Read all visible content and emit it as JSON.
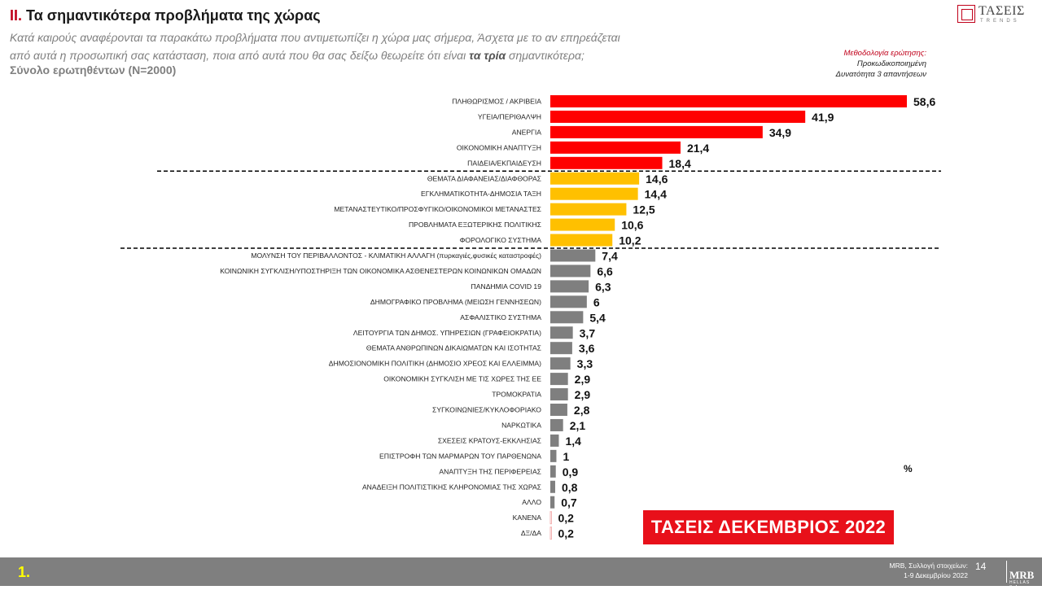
{
  "header": {
    "number": "II.",
    "title": "Τα σημαντικότερα προβλήματα της χώρας",
    "subtitle_line1": "Κατά καιρούς αναφέρονται τα παρακάτω προβλήματα που αντιμετωπίζει η χώρα μας σήμερα, Άσχετα με το αν επηρεάζεται",
    "subtitle_line2_start": "από αυτά η προσωπική σας κατάσταση, ποια από αυτά που θα σας δείξω θεωρείτε ότι είναι ",
    "subtitle_line2_bold": "τα τρία",
    "subtitle_line2_end": " σημαντικότερα;",
    "sample": "Σύνολο ερωτηθέντων (Ν=2000)"
  },
  "logo": {
    "name": "ΤΑΣΕΙΣ",
    "sub": "TRENDS"
  },
  "methodology": {
    "title": "Μεθοδολογία ερώτησης:",
    "line1": "Προκωδικοποιημένη",
    "line2": "Δυνατότητα 3 απαντήσεων"
  },
  "unit_label": "%",
  "stamp": "ΤΑΣΕΙΣ ΔΕΚΕΜΒΡΙΟΣ 2022",
  "footer": {
    "slide_number": "1.",
    "source_line1": "MRB, Συλλογή στοιχείων:",
    "source_line2": "1-9 Δεκεμβρίου 2022",
    "page": "14",
    "mrb": "MRB",
    "mrb_sub": "HELLAS S.A."
  },
  "colors": {
    "top_group": "#ff0000",
    "mid_group": "#ffc000",
    "rest_group": "#7f7f7f",
    "accent": "#c0001a"
  },
  "chart_data": {
    "type": "bar",
    "orientation": "horizontal",
    "categories": [
      "ΠΛΗΘΩΡΙΣΜΟΣ / ΑΚΡΙΒΕΙΑ",
      "ΥΓΕΙΑ/ΠΕΡΙΘΑΛΨΗ",
      "ΑΝΕΡΓΙΑ",
      "ΟΙΚΟΝΟΜΙΚΗ ΑΝΑΠΤΥΞΗ",
      "ΠΑΙΔΕΙΑ/ΕΚΠΑΙΔΕΥΣΗ",
      "ΘΕΜΑΤΑ ΔΙΑΦΑΝΕΙΑΣ/ΔΙΑΦΘΟΡΑΣ",
      "ΕΓΚΛΗΜΑΤΙΚΟΤΗΤΑ-ΔΗΜΟΣΙΑ ΤΑΞΗ",
      "ΜΕΤΑΝΑΣΤΕΥΤΙΚΟ/ΠΡΟΣΦΥΓΙΚΟ/ΟΙΚΟΝΟΜΙΚΟΙ ΜΕΤΑΝΑΣΤΕΣ",
      "ΠΡΟΒΛΗΜΑΤΑ ΕΞΩΤΕΡΙΚΗΣ ΠΟΛΙΤΙΚΗΣ",
      "ΦΟΡΟΛΟΓΙΚΟ ΣΥΣΤΗΜΑ",
      "ΜΟΛΥΝΣΗ ΤΟΥ ΠΕΡΙΒΑΛΛΟΝΤΟΣ - ΚΛΙΜΑΤΙΚΗ ΑΛΛΑΓΗ (πυρκαγιές,φυσικές καταστροφές)",
      "ΚΟΙΝΩΝΙΚΗ ΣΥΓΚΛΙΣΗ/ΥΠΟΣΤΗΡΙΞΗ ΤΩΝ ΟΙΚΟΝΟΜΙΚΑ ΑΣΘΕΝΕΣΤΕΡΩΝ ΚΟΙΝΩΝΙΚΩΝ ΟΜΑΔΩΝ",
      "ΠΑΝΔΗΜΙΑ COVID 19",
      "ΔΗΜΟΓΡΑΦΙΚΟ ΠΡΟΒΛΗΜΑ (ΜΕΙΩΣΗ ΓΕΝΝΗΣΕΩΝ)",
      "ΑΣΦΑΛΙΣΤΙΚΟ ΣΥΣΤΗΜΑ",
      "ΛΕΙΤΟΥΡΓΙΑ ΤΩΝ ΔΗΜΟΣ. ΥΠΗΡΕΣΙΩΝ (ΓΡΑΦΕΙΟΚΡΑΤΙΑ)",
      "ΘΕΜΑΤΑ ΑΝΘΡΩΠΙΝΩΝ ΔΙΚΑΙΩΜΑΤΩΝ ΚΑΙ ΙΣΟΤΗΤΑΣ",
      "ΔΗΜΟΣΙΟΝΟΜΙΚΗ ΠΟΛΙΤΙΚΗ (ΔΗΜΟΣΙΟ ΧΡΕΟΣ ΚΑΙ ΕΛΛΕΙΜΜΑ)",
      "ΟΙΚΟΝΟΜΙΚΗ ΣΥΓΚΛΙΣΗ ΜΕ ΤΙΣ ΧΩΡΕΣ ΤΗΣ ΕΕ",
      "ΤΡΟΜΟΚΡΑΤΙΑ",
      "ΣΥΓΚΟΙΝΩΝΙΕΣ/ΚΥΚΛΟΦΟΡΙΑΚΟ",
      "ΝΑΡΚΩΤΙΚΑ",
      "ΣΧΕΣΕΙΣ ΚΡΑΤΟΥΣ-ΕΚΚΛΗΣΙΑΣ",
      "ΕΠΙΣΤΡΟΦΗ ΤΩΝ ΜΑΡΜΑΡΩΝ ΤΟΥ ΠΑΡΘΕΝΩΝΑ",
      "ΑΝΑΠΤΥΞΗ ΤΗΣ ΠΕΡΙΦΕΡΕΙΑΣ",
      "ΑΝΑΔΕΙΞΗ ΠΟΛΙΤΙΣΤΙΚΗΣ ΚΛΗΡΟΝΟΜΙΑΣ ΤΗΣ ΧΩΡΑΣ",
      "ΑΛΛΟ",
      "ΚΑΝΕΝΑ",
      "ΔΞ/ΔΑ"
    ],
    "values": [
      58.6,
      41.9,
      34.9,
      21.4,
      18.4,
      14.6,
      14.4,
      12.5,
      10.6,
      10.2,
      7.4,
      6.6,
      6.3,
      6,
      5.4,
      3.7,
      3.6,
      3.3,
      2.9,
      2.9,
      2.8,
      2.1,
      1.4,
      1,
      0.9,
      0.8,
      0.7,
      0.2,
      0.2
    ],
    "value_labels": [
      "58,6",
      "41,9",
      "34,9",
      "21,4",
      "18,4",
      "14,6",
      "14,4",
      "12,5",
      "10,6",
      "10,2",
      "7,4",
      "6,6",
      "6,3",
      "6",
      "5,4",
      "3,7",
      "3,6",
      "3,3",
      "2,9",
      "2,9",
      "2,8",
      "2,1",
      "1,4",
      "1",
      "0,9",
      "0,8",
      "0,7",
      "0,2",
      "0,2"
    ],
    "groups": [
      "top",
      "top",
      "top",
      "top",
      "top",
      "mid",
      "mid",
      "mid",
      "mid",
      "mid",
      "rest",
      "rest",
      "rest",
      "rest",
      "rest",
      "rest",
      "rest",
      "rest",
      "rest",
      "rest",
      "rest",
      "rest",
      "rest",
      "rest",
      "rest",
      "rest",
      "rest",
      "blank",
      "blank"
    ],
    "xlim": [
      0,
      60
    ],
    "unit": "%",
    "grid": false,
    "legend": "none",
    "group_separators_after_index": [
      4,
      9
    ]
  }
}
